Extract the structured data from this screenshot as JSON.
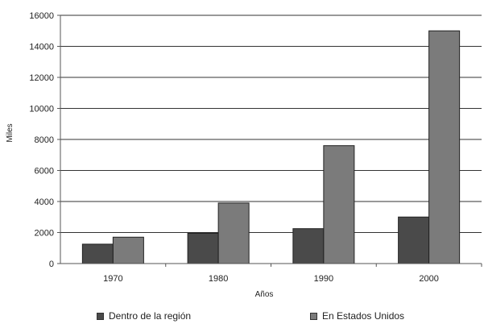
{
  "chart_data": {
    "type": "bar",
    "title": "",
    "xlabel": "Años",
    "ylabel": "Miles",
    "categories": [
      "1970",
      "1980",
      "1990",
      "2000"
    ],
    "ylim": [
      0,
      16000
    ],
    "yticks": [
      "0",
      "2000",
      "4000",
      "6000",
      "8000",
      "10000",
      "12000",
      "14000",
      "16000"
    ],
    "grid": true,
    "legend_position": "bottom",
    "series": [
      {
        "name": "Dentro de la región",
        "values": [
          1250,
          1950,
          2250,
          3000
        ],
        "color": "#4a4a4a"
      },
      {
        "name": "En Estados Unidos",
        "values": [
          1700,
          3900,
          7600,
          15000
        ],
        "color": "#7b7b7b"
      }
    ]
  }
}
